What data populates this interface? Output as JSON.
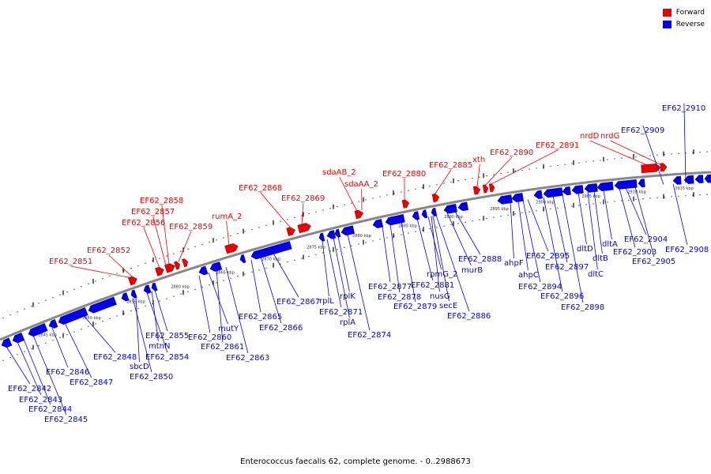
{
  "legend": {
    "forward": {
      "label": "Forward",
      "color": "#ee0000"
    },
    "reverse": {
      "label": "Reverse",
      "color": "#0000ee"
    }
  },
  "caption": "Enterococcus faecalis 62, complete genome. - 0..2988673",
  "colors": {
    "backbone": "#888888",
    "forward": "#ee0000",
    "reverse": "#0000ee",
    "leader": "#000000"
  },
  "kbp_labels": [
    "2845 kbp",
    "2850 kbp",
    "2855 kbp",
    "2860 kbp",
    "2865 kbp",
    "2870 kbp",
    "2875 kbp",
    "2880 kbp",
    "2885 kbp",
    "2890 kbp",
    "2895 kbp",
    "2900 kbp",
    "2905 kbp",
    "2910 kbp",
    "2915 kbp"
  ],
  "forward_labels": [
    "EF62_2851",
    "EF62_2852",
    "EF62_2856",
    "EF62_2857",
    "EF62_2858",
    "EF62_2859",
    "rumA_2",
    "EF62_2868",
    "EF62_2869",
    "sdaAB_2",
    "sdaAA_2",
    "EF62_2880",
    "EF62_2885",
    "xth",
    "EF62_2890",
    "EF62_2891",
    "nrdD",
    "nrdG"
  ],
  "reverse_labels": [
    "EF62_2842",
    "EF62_2843",
    "EF62_2844",
    "EF62_2845",
    "EF62_2846",
    "EF62_2847",
    "EF62_2848",
    "sbcD",
    "EF62_2850",
    "EF62_2854",
    "mtnN",
    "EF62_2855",
    "EF62_2860",
    "mutY",
    "EF62_2861",
    "EF62_2863",
    "EF62_2865",
    "EF62_2866",
    "EF62_2867",
    "rplL",
    "EF62_2871",
    "rplA",
    "rplK",
    "EF62_2874",
    "EF62_2877",
    "EF62_2878",
    "EF62_2879",
    "EF62_2881",
    "rpmG_2",
    "nusG",
    "secE",
    "EF62_2886",
    "murB",
    "EF62_2888",
    "ahpF",
    "ahpC",
    "EF62_2894",
    "EF62_2895",
    "EF62_2896",
    "EF62_2897",
    "EF62_2898",
    "dltD",
    "dltC",
    "dltB",
    "dltA",
    "EF62_2903",
    "EF62_2904",
    "EF62_2905",
    "EF62_2908",
    "EF62_2909",
    "EF62_2910"
  ]
}
